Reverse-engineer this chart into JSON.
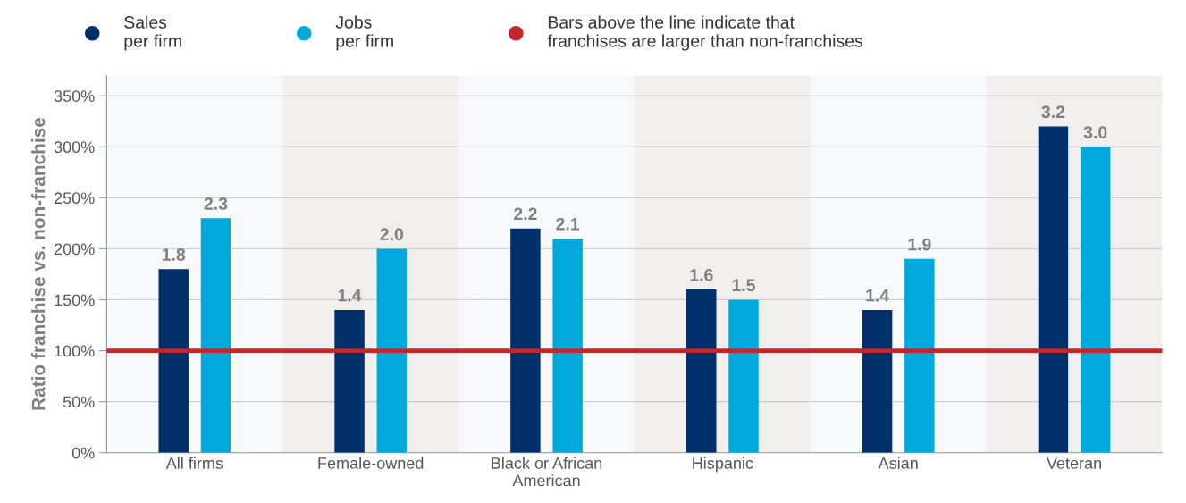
{
  "chart_data": {
    "type": "bar",
    "ylabel": "Ratio franchise vs. non-franchise",
    "categories": [
      "All firms",
      "Female-owned",
      "Black or African\nAmerican",
      "Hispanic",
      "Asian",
      "Veteran"
    ],
    "series": [
      {
        "name": "Sales\nper firm",
        "color": "#00306b",
        "values": [
          1.8,
          1.4,
          2.2,
          1.6,
          1.4,
          3.2
        ],
        "value_labels": [
          "1.8",
          "1.4",
          "2.2",
          "1.6",
          "1.4",
          "3.2"
        ]
      },
      {
        "name": "Jobs\nper firm",
        "color": "#00a9dd",
        "values": [
          2.3,
          2.0,
          2.1,
          1.5,
          1.9,
          3.0
        ],
        "value_labels": [
          "2.3",
          "2.0",
          "2.1",
          "1.5",
          "1.9",
          "3.0"
        ]
      }
    ],
    "ylim": [
      0,
      3.7
    ],
    "yticks": [
      {
        "value": 0,
        "label": "0%"
      },
      {
        "value": 0.5,
        "label": "50%"
      },
      {
        "value": 1.0,
        "label": "100%"
      },
      {
        "value": 1.5,
        "label": "150%"
      },
      {
        "value": 2.0,
        "label": "200%"
      },
      {
        "value": 2.5,
        "label": "250%"
      },
      {
        "value": 3.0,
        "label": "300%"
      },
      {
        "value": 3.5,
        "label": "350%"
      }
    ],
    "ref_lines": [
      {
        "axis": "y",
        "value": 1.0,
        "label": "Bars above the line indicate that\nfranchises are larger than non-franchises",
        "color": "#c1272d"
      }
    ],
    "grid": "y",
    "legend": "top left"
  }
}
